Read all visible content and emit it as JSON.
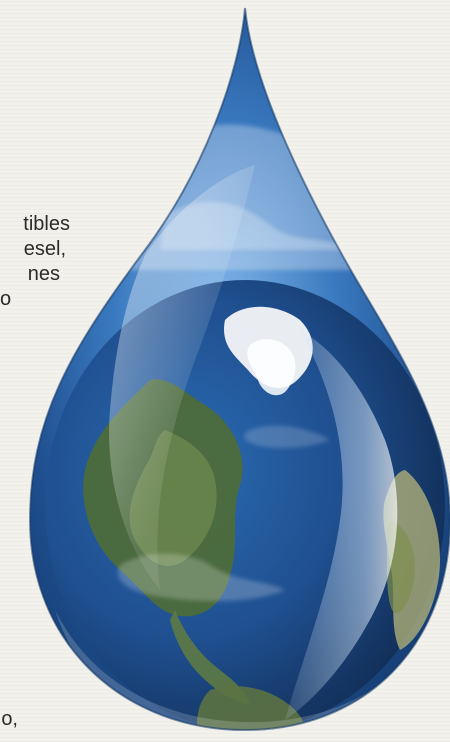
{
  "page": {
    "background_color": "#f2f1ec",
    "text_color": "#2d2b2a"
  },
  "column_fragments": [
    "tibles",
    "esel,",
    "nes",
    "o",
    "o,"
  ],
  "illustration": {
    "subject": "water-drop-with-earth-icon",
    "colors": {
      "drop_blue": "#2f73b8",
      "drop_dark": "#163f76",
      "ocean": "#1f4f8f",
      "land": "#4d6b3a",
      "ice": "#f4f6f8",
      "cloud": "#dfe9f5"
    }
  }
}
